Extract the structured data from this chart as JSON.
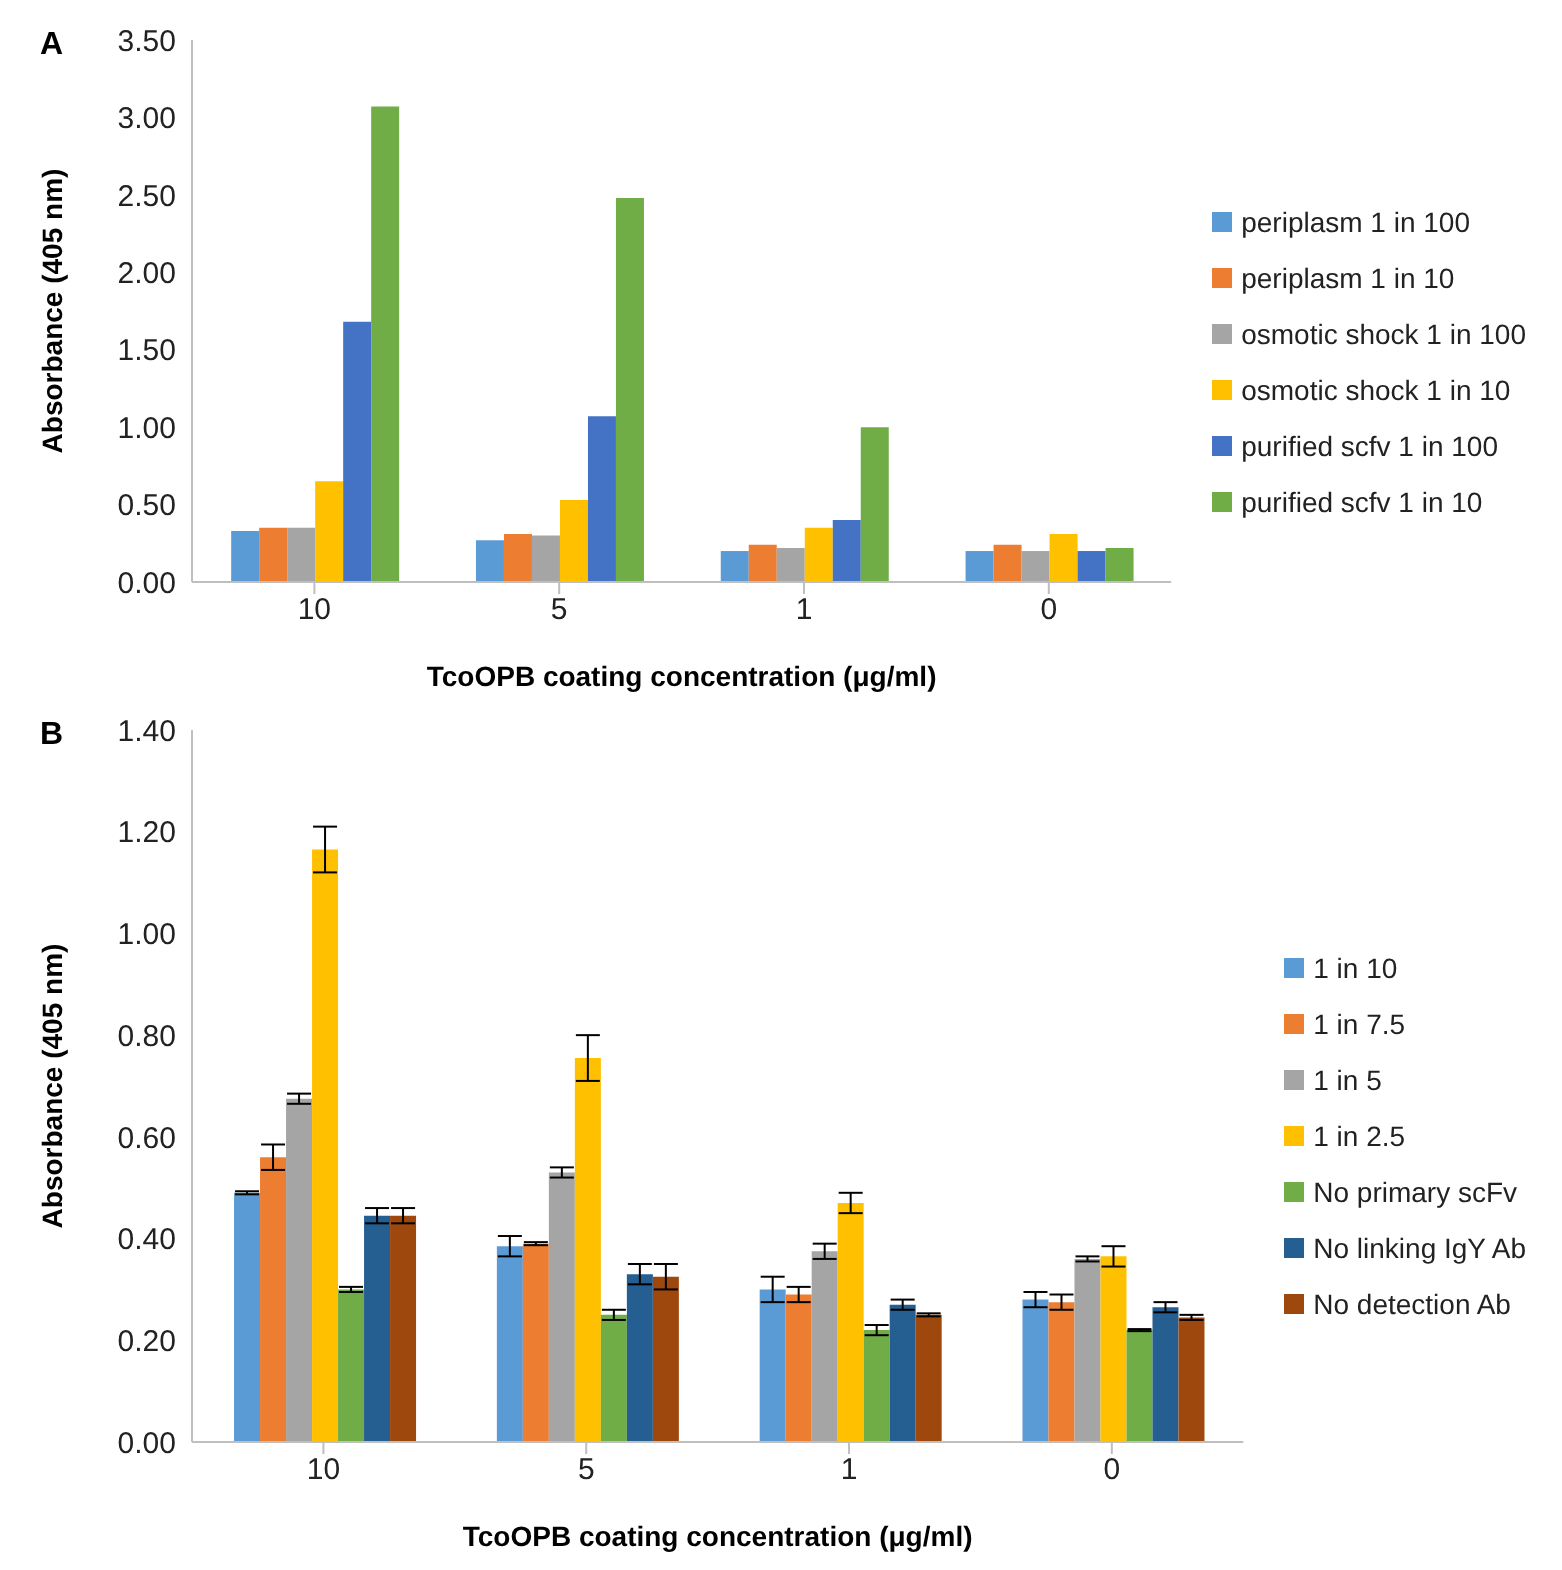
{
  "chart_data": [
    {
      "type": "bar",
      "annotations": [
        "A"
      ],
      "xlabel": "TcoOPB coating concentration (μg/ml)",
      "ylabel": "Absorbance (405 nm)",
      "categories": [
        "10",
        "5",
        "1",
        "0"
      ],
      "ylim": [
        0,
        3.5
      ],
      "yticks": [
        {
          "value": 0,
          "label": "0.00"
        },
        {
          "value": 0.5,
          "label": "0.50"
        },
        {
          "value": 1,
          "label": "1.00"
        },
        {
          "value": 1.5,
          "label": "1.50"
        },
        {
          "value": 2,
          "label": "2.00"
        },
        {
          "value": 2.5,
          "label": "2.50"
        },
        {
          "value": 3,
          "label": "3.00"
        },
        {
          "value": 3.5,
          "label": "3.50"
        }
      ],
      "grid": false,
      "legend": "right",
      "series": [
        {
          "name": "periplasm 1 in 100",
          "color": "#5b9bd5",
          "values": [
            0.33,
            0.27,
            0.2,
            0.2
          ]
        },
        {
          "name": "periplasm 1 in 10",
          "color": "#ed7d31",
          "values": [
            0.35,
            0.31,
            0.24,
            0.24
          ]
        },
        {
          "name": "osmotic shock 1 in 100",
          "color": "#a5a5a5",
          "values": [
            0.35,
            0.3,
            0.22,
            0.2
          ]
        },
        {
          "name": "osmotic shock 1 in 10",
          "color": "#ffc000",
          "values": [
            0.65,
            0.53,
            0.35,
            0.31
          ]
        },
        {
          "name": "purified scfv 1 in 100",
          "color": "#4472c4",
          "values": [
            1.68,
            1.07,
            0.4,
            0.2
          ]
        },
        {
          "name": "purified scfv 1 in 10",
          "color": "#70ad47",
          "values": [
            3.07,
            2.48,
            1.0,
            0.22
          ]
        }
      ]
    },
    {
      "type": "bar",
      "annotations": [
        "B"
      ],
      "xlabel": "TcoOPB coating concentration (μg/ml)",
      "ylabel": "Absorbance (405 nm)",
      "categories": [
        "10",
        "5",
        "1",
        "0"
      ],
      "ylim": [
        0,
        1.4
      ],
      "yticks": [
        {
          "value": 0,
          "label": "0.00"
        },
        {
          "value": 0.2,
          "label": "0.20"
        },
        {
          "value": 0.4,
          "label": "0.40"
        },
        {
          "value": 0.6,
          "label": "0.60"
        },
        {
          "value": 0.8,
          "label": "0.80"
        },
        {
          "value": 1,
          "label": "1.00"
        },
        {
          "value": 1.2,
          "label": "1.20"
        },
        {
          "value": 1.4,
          "label": "1.40"
        }
      ],
      "grid": false,
      "legend": "right",
      "series": [
        {
          "name": "1 in 10",
          "color": "#5b9bd5",
          "values": [
            0.49,
            0.385,
            0.3,
            0.28
          ],
          "errors": [
            0.003,
            0.02,
            0.025,
            0.015
          ]
        },
        {
          "name": "1 in 7.5",
          "color": "#ed7d31",
          "values": [
            0.56,
            0.39,
            0.29,
            0.275
          ],
          "errors": [
            0.025,
            0.003,
            0.015,
            0.015
          ]
        },
        {
          "name": "1 in 5",
          "color": "#a5a5a5",
          "values": [
            0.675,
            0.53,
            0.375,
            0.36
          ],
          "errors": [
            0.01,
            0.01,
            0.015,
            0.005
          ]
        },
        {
          "name": "1 in 2.5",
          "color": "#ffc000",
          "values": [
            1.165,
            0.755,
            0.47,
            0.365
          ],
          "errors": [
            0.045,
            0.045,
            0.02,
            0.02
          ]
        },
        {
          "name": "No primary scFv",
          "color": "#70ad47",
          "values": [
            0.3,
            0.25,
            0.22,
            0.22
          ],
          "errors": [
            0.005,
            0.01,
            0.01,
            0.002
          ]
        },
        {
          "name": "No linking IgY Ab",
          "color": "#255e91",
          "values": [
            0.445,
            0.33,
            0.27,
            0.265
          ],
          "errors": [
            0.015,
            0.02,
            0.01,
            0.01
          ]
        },
        {
          "name": "No detection Ab",
          "color": "#9e480e",
          "values": [
            0.445,
            0.325,
            0.25,
            0.245
          ],
          "errors": [
            0.015,
            0.025,
            0.003,
            0.005
          ]
        }
      ]
    }
  ]
}
